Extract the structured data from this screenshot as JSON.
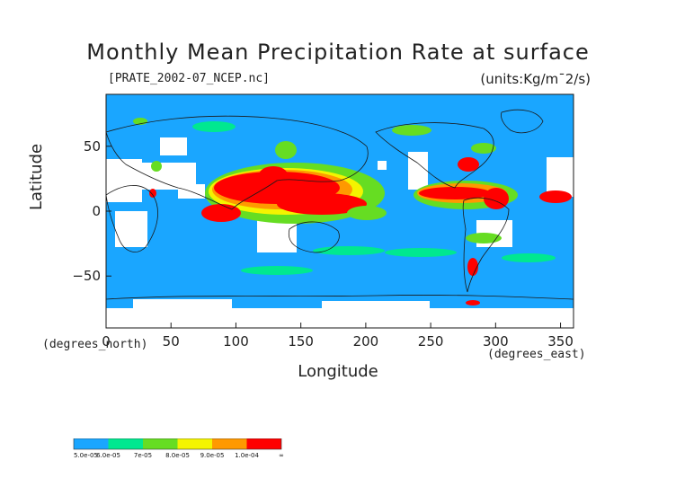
{
  "chart_data": {
    "type": "heatmap",
    "title": "Monthly Mean Precipitation Rate at surface",
    "subtitle": "[PRATE_2002-07_NCEP.nc]",
    "units": "(units:Kg/m¯2/s)",
    "xlabel": "Longitude",
    "ylabel": "Latitude",
    "xlabel_unit": "(degrees_east)",
    "ylabel_unit": "(degrees_north)",
    "xlim": [
      0,
      360
    ],
    "ylim": [
      -90,
      90
    ],
    "x_ticks": [
      "0",
      "50",
      "100",
      "150",
      "200",
      "250",
      "300",
      "350"
    ],
    "x_tick_values": [
      0,
      50,
      100,
      150,
      200,
      250,
      300,
      350
    ],
    "y_ticks": [
      "50",
      "0",
      "−50"
    ],
    "y_tick_values": [
      50,
      0,
      -50
    ],
    "colorbar": {
      "labels": [
        "5.0e-05",
        "6.0e-05",
        "7e-05",
        "8.0e-05",
        "9.0e-05",
        "1.0e-04",
        "∞"
      ],
      "colors": [
        "#1aa6ff",
        "#00e890",
        "#66dd22",
        "#f4f400",
        "#ff9900",
        "#ff0000"
      ]
    },
    "colors": {
      "low": "#1aa6ff",
      "mid1": "#00e890",
      "mid2": "#66dd22",
      "mid3": "#f4f400",
      "mid4": "#ff9900",
      "high": "#ff0000",
      "missing": "#ffffff",
      "coast": "#1a1a1a"
    }
  }
}
